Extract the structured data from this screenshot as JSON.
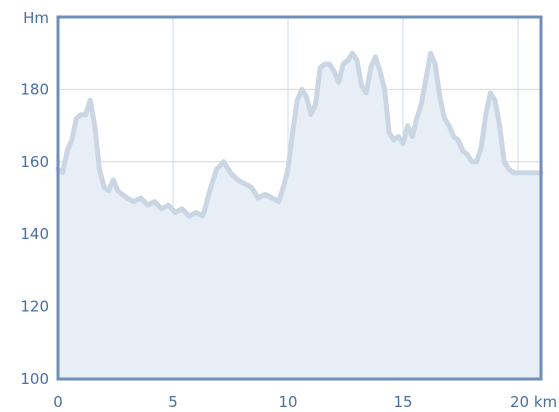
{
  "colors": {
    "frame": "#6f8fba",
    "grid": "#cfdbe8",
    "area_fill": "#e8eef5",
    "line": "#cbd6e5",
    "text": "#4a6fa5",
    "background": "#ffffff"
  },
  "chart_data": {
    "type": "area",
    "title": "",
    "xlabel": "",
    "ylabel": "",
    "y_unit": "Hm",
    "x_unit": "km",
    "xlim": [
      0,
      21
    ],
    "ylim": [
      100,
      200
    ],
    "grid": true,
    "legend": "none",
    "x_ticks": [
      0,
      5,
      10,
      15,
      20
    ],
    "x_tick_labels": [
      "0",
      "5",
      "10",
      "15",
      "20 km"
    ],
    "y_ticks": [
      100,
      120,
      140,
      160,
      180
    ],
    "y_tick_labels": [
      "100",
      "120",
      "140",
      "160",
      "180"
    ],
    "series": [
      {
        "x": [
          0.0,
          0.2,
          0.4,
          0.6,
          0.8,
          1.0,
          1.2,
          1.4,
          1.6,
          1.8,
          2.0,
          2.2,
          2.4,
          2.6,
          2.8,
          3.0,
          3.3,
          3.6,
          3.9,
          4.2,
          4.5,
          4.8,
          5.1,
          5.4,
          5.7,
          6.0,
          6.3,
          6.6,
          6.9,
          7.2,
          7.5,
          7.8,
          8.1,
          8.4,
          8.7,
          9.0,
          9.3,
          9.6,
          9.8,
          10.0,
          10.2,
          10.4,
          10.6,
          10.8,
          11.0,
          11.2,
          11.4,
          11.6,
          11.8,
          12.0,
          12.2,
          12.4,
          12.6,
          12.8,
          13.0,
          13.2,
          13.4,
          13.6,
          13.8,
          14.0,
          14.2,
          14.4,
          14.6,
          14.8,
          15.0,
          15.2,
          15.4,
          15.6,
          15.8,
          16.0,
          16.2,
          16.4,
          16.6,
          16.8,
          17.0,
          17.2,
          17.4,
          17.6,
          17.8,
          18.0,
          18.2,
          18.4,
          18.6,
          18.8,
          19.0,
          19.2,
          19.4,
          19.6,
          19.8,
          20.0,
          20.2,
          20.4,
          20.6,
          20.8,
          21.0
        ],
        "values": [
          158,
          157,
          163,
          166,
          172,
          173,
          173,
          177,
          170,
          158,
          153,
          152,
          155,
          152,
          151,
          150,
          149,
          150,
          148,
          149,
          147,
          148,
          146,
          147,
          145,
          146,
          145,
          152,
          158,
          160,
          157,
          155,
          154,
          153,
          150,
          151,
          150,
          149,
          153,
          158,
          168,
          177,
          180,
          178,
          173,
          176,
          186,
          187,
          187,
          185,
          182,
          187,
          188,
          190,
          188,
          181,
          179,
          186,
          189,
          185,
          180,
          168,
          166,
          167,
          165,
          170,
          167,
          172,
          176,
          183,
          190,
          187,
          178,
          172,
          170,
          167,
          166,
          163,
          162,
          160,
          160,
          164,
          173,
          179,
          177,
          170,
          160,
          158,
          157,
          157,
          157,
          157,
          157,
          157,
          157
        ]
      }
    ]
  }
}
